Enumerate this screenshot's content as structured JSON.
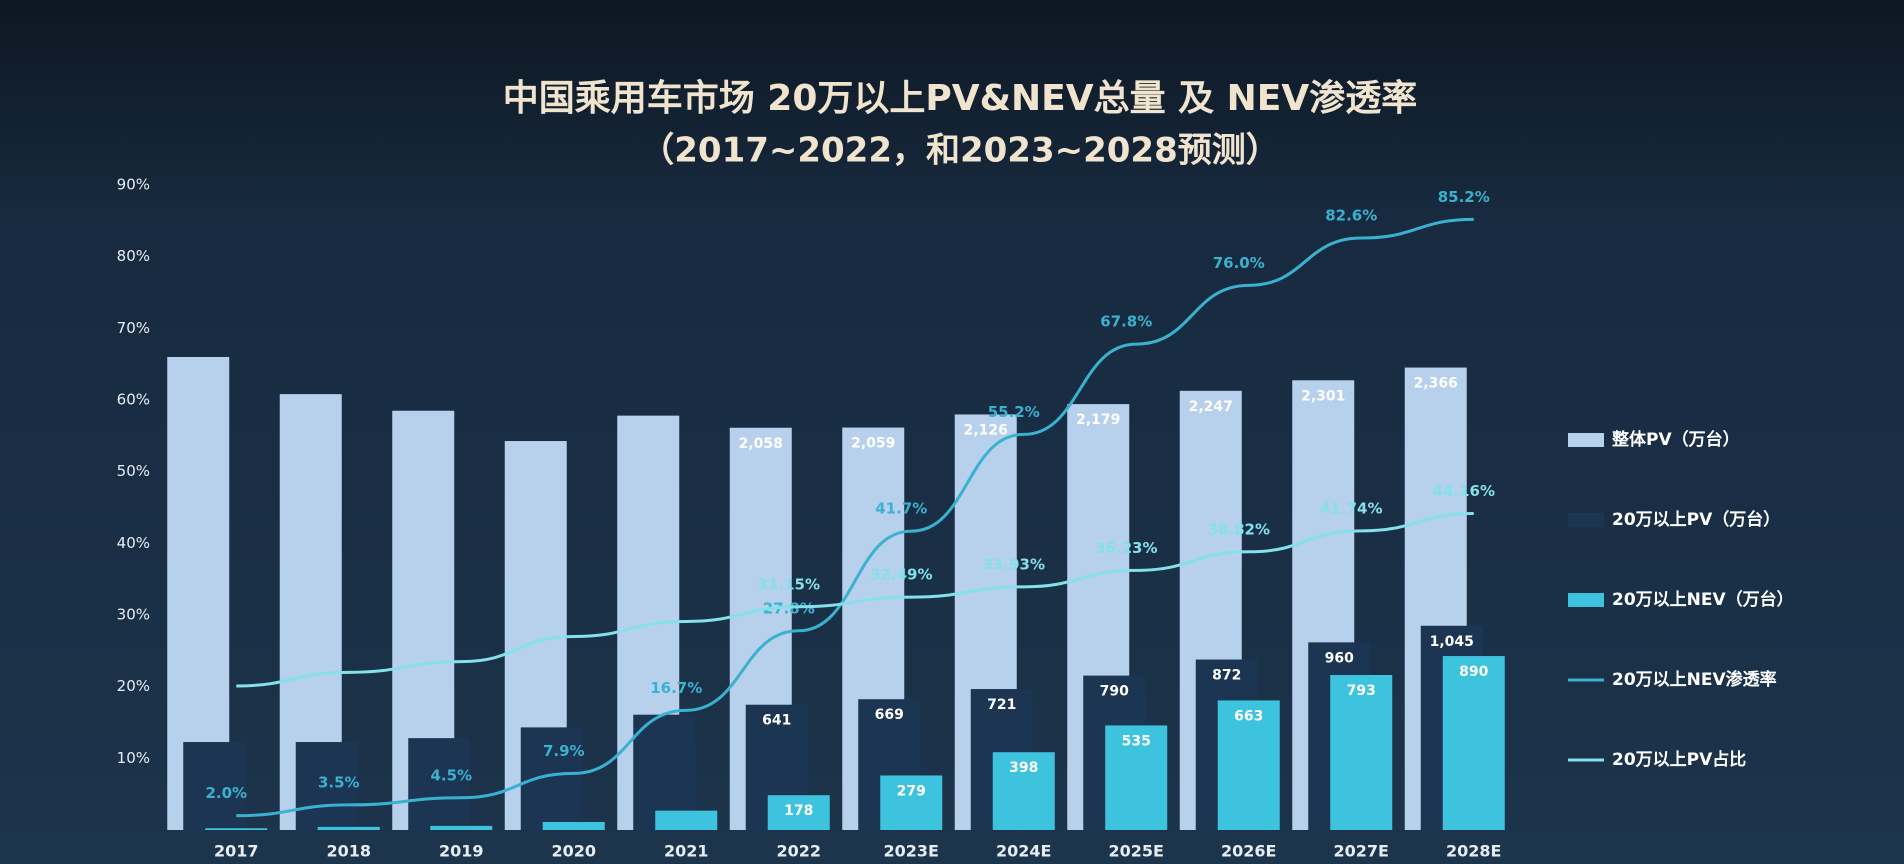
{
  "chart_data": {
    "type": "bar",
    "title": "中国乘用车市场 20万以上PV&NEV总量 及 NEV渗透率",
    "subtitle": "（2017~2022，和2023~2028预测）",
    "categories": [
      "2017",
      "2018",
      "2019",
      "2020",
      "2021",
      "2022",
      "2023E",
      "2024E",
      "2025E",
      "2026E",
      "2027E",
      "2028E"
    ],
    "ylim": [
      0,
      90
    ],
    "yticks": [
      {
        "value": 10,
        "label": "10%"
      },
      {
        "value": 20,
        "label": "20%"
      },
      {
        "value": 30,
        "label": "30%"
      },
      {
        "value": 40,
        "label": "40%"
      },
      {
        "value": 50,
        "label": "50%"
      },
      {
        "value": 60,
        "label": "60%"
      },
      {
        "value": 70,
        "label": "70%"
      },
      {
        "value": 80,
        "label": "80%"
      },
      {
        "value": 90,
        "label": "90%"
      }
    ],
    "y2lim": [
      0,
      3300
    ],
    "series": [
      {
        "name": "整体PV（万台）",
        "type": "bar",
        "axis": "y2",
        "color": "#b7d0ec",
        "values": [
          2420,
          2230,
          2145,
          1990,
          2120,
          2058,
          2059,
          2126,
          2179,
          2247,
          2301,
          2366
        ],
        "value_labels": [
          null,
          null,
          null,
          null,
          null,
          "2,058",
          "2,059",
          "2,126",
          "2,179",
          "2,247",
          "2,301",
          "2,366"
        ]
      },
      {
        "name": "20万以上PV（万台）",
        "type": "bar",
        "axis": "y2",
        "color": "#1c3552",
        "values": [
          450,
          450,
          470,
          525,
          590,
          641,
          669,
          721,
          790,
          872,
          960,
          1045
        ],
        "value_labels": [
          null,
          null,
          null,
          null,
          null,
          "641",
          "669",
          "721",
          "790",
          "872",
          "960",
          "1,045"
        ]
      },
      {
        "name": "20万以上NEV（万台）",
        "type": "bar",
        "axis": "y2",
        "color": "#3ec3df",
        "values": [
          9,
          16,
          21,
          41,
          99,
          178,
          279,
          398,
          535,
          663,
          793,
          890
        ],
        "value_labels": [
          null,
          null,
          null,
          null,
          null,
          "178",
          "279",
          "398",
          "535",
          "663",
          "793",
          "890"
        ]
      },
      {
        "name": "20万以上NEV渗透率",
        "type": "line",
        "color": "#3ab2cf",
        "values": [
          2.0,
          3.5,
          4.5,
          7.9,
          16.7,
          27.8,
          41.7,
          55.2,
          67.8,
          76.0,
          82.6,
          85.2
        ],
        "value_labels": [
          "2.0%",
          "3.5%",
          "4.5%",
          "7.9%",
          "16.7%",
          "27.8%",
          "41.7%",
          "55.2%",
          "67.8%",
          "76.0%",
          "82.6%",
          "85.2%"
        ]
      },
      {
        "name": "20万以上PV占比",
        "type": "line",
        "color": "#84e0ea",
        "values": [
          20.1,
          22.0,
          23.5,
          27.0,
          29.1,
          31.15,
          32.49,
          33.93,
          36.23,
          38.82,
          41.74,
          44.16
        ],
        "value_labels": [
          null,
          null,
          null,
          null,
          null,
          "31.15%",
          "32.49%",
          "33.93%",
          "36.23%",
          "38.82%",
          "41.74%",
          "44.16%"
        ]
      }
    ]
  }
}
